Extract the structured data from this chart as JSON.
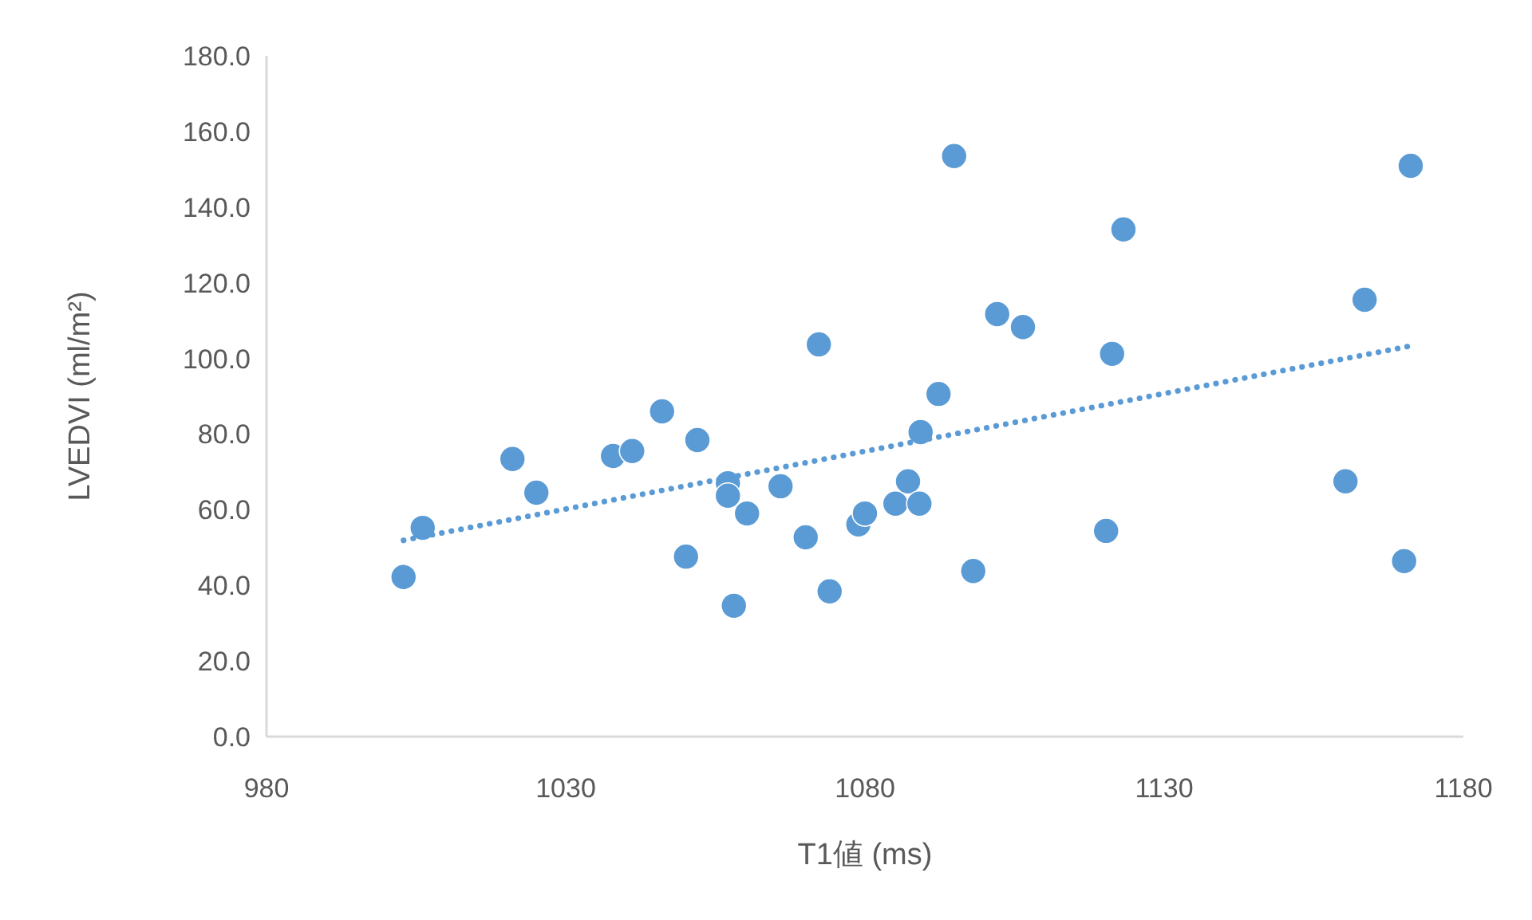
{
  "chart_data": {
    "type": "scatter",
    "xlabel": "T1値 (ms)",
    "ylabel": "LVEDVI (ml/m²)",
    "xlim": [
      980,
      1180
    ],
    "xticks": [
      980,
      1030,
      1080,
      1130,
      1180
    ],
    "ylim": [
      0,
      180
    ],
    "yticks": [
      {
        "value": 0,
        "label": "0.0"
      },
      {
        "value": 20,
        "label": "20.0"
      },
      {
        "value": 40,
        "label": "40.0"
      },
      {
        "value": 60,
        "label": "60.0"
      },
      {
        "value": 80,
        "label": "80.0"
      },
      {
        "value": 100,
        "label": "100.0"
      },
      {
        "value": 120,
        "label": "120.0"
      },
      {
        "value": 140,
        "label": "140.0"
      },
      {
        "value": 160,
        "label": "160.0"
      },
      {
        "value": 180,
        "label": "180.0"
      }
    ],
    "series": [
      {
        "type": "scatter",
        "color": "#5b9bd5",
        "marker": "circle",
        "x": [
          1002.9,
          1006.1,
          1021.1,
          1025.1,
          1037.9,
          1041.1,
          1046.1,
          1052.0,
          1050.1,
          1057.1,
          1057.1,
          1058.1,
          1060.3,
          1065.9,
          1070.1,
          1072.3,
          1074.1,
          1078.9,
          1080.0,
          1085.1,
          1087.2,
          1089.1,
          1089.3,
          1092.3,
          1094.9,
          1098.1,
          1102.1,
          1106.4,
          1120.3,
          1121.3,
          1123.2,
          1160.3,
          1163.5,
          1170.1,
          1171.2
        ],
        "values": [
          42.2,
          55.2,
          73.4,
          64.5,
          74.2,
          75.5,
          86.0,
          78.4,
          47.6,
          67.0,
          63.7,
          34.6,
          59.0,
          66.2,
          52.7,
          103.7,
          38.4,
          56.1,
          59.0,
          61.6,
          67.5,
          61.6,
          80.5,
          90.6,
          153.5,
          43.8,
          111.7,
          108.3,
          54.4,
          101.2,
          134.1,
          67.5,
          115.5,
          46.4,
          150.9
        ]
      },
      {
        "type": "line",
        "color": "#5b9bd5",
        "line_style": "dotted",
        "marker": "none",
        "x": [
          1002.9,
          1171.2
        ],
        "values": [
          51.9,
          103.3
        ]
      }
    ]
  }
}
